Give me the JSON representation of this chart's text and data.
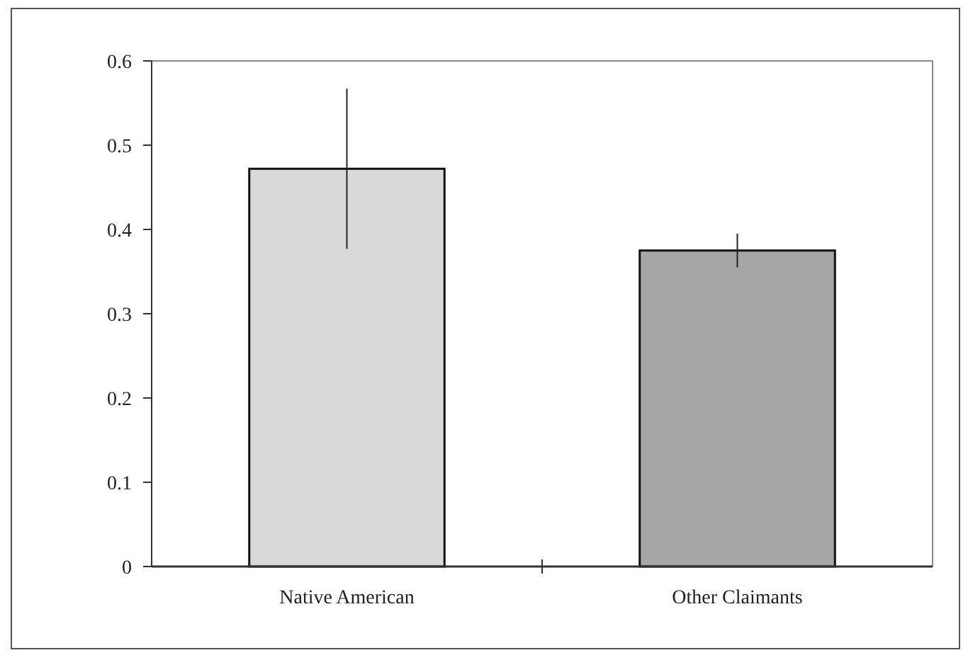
{
  "chart_data": {
    "type": "bar",
    "categories": [
      "Native American",
      "Other Claimants"
    ],
    "values": [
      0.472,
      0.375
    ],
    "colors": [
      "#d9d9d9",
      "#a6a6a6"
    ],
    "errors": [
      0.095,
      0.02
    ],
    "ylim": [
      0,
      0.6
    ],
    "yticks": [
      0,
      0.1,
      0.2,
      0.3,
      0.4,
      0.5,
      0.6
    ],
    "grid": false
  }
}
